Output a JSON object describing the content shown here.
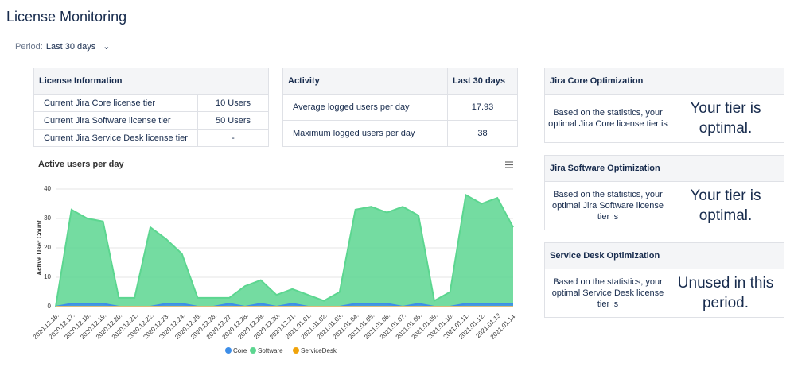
{
  "header": {
    "title": "License Monitoring"
  },
  "period": {
    "label": "Period:",
    "value": "Last 30 days"
  },
  "license_table": {
    "header": "License Information",
    "rows": [
      [
        "Current Jira Core license tier",
        "10 Users"
      ],
      [
        "Current Jira Software license tier",
        "50 Users"
      ],
      [
        "Current Jira Service Desk license tier",
        "-"
      ]
    ]
  },
  "activity_table": {
    "headers": [
      "Activity",
      "Last 30 days"
    ],
    "rows": [
      [
        "Average logged users per day",
        "17.93"
      ],
      [
        "Maximum logged users per day",
        "38"
      ]
    ]
  },
  "cards": [
    {
      "title": "Jira Core Optimization",
      "text": "Based on the statistics, your optimal Jira Core license tier is",
      "result": "Your tier is optimal."
    },
    {
      "title": "Jira Software Optimization",
      "text": "Based on the statistics, your optimal Jira Software license tier is",
      "result": "Your tier is optimal."
    },
    {
      "title": "Service Desk Optimization",
      "text": "Based on the statistics, your optimal Service Desk license tier is",
      "result": "Unused in this period."
    }
  ],
  "chart_data": {
    "type": "area",
    "title": "Active users per day",
    "y_label": "Active User Count",
    "categories": [
      "2020.12.16.",
      "2020.12.17.",
      "2020.12.18.",
      "2020.12.19.",
      "2020.12.20.",
      "2020.12.21.",
      "2020.12.22.",
      "2020.12.23.",
      "2020.12.24.",
      "2020.12.25.",
      "2020.12.26.",
      "2020.12.27.",
      "2020.12.28.",
      "2020.12.29.",
      "2020.12.30.",
      "2020.12.31.",
      "2021.01.01.",
      "2021.01.02.",
      "2021.01.03.",
      "2021.01.04.",
      "2021.01.05.",
      "2021.01.06.",
      "2021.01.07.",
      "2021.01.08.",
      "2021.01.09.",
      "2021.01.10.",
      "2021.01.11.",
      "2021.01.12.",
      "2021.01.13",
      "2021.01.14."
    ],
    "series": [
      {
        "name": "Core",
        "color": "#3d8ee8",
        "values": [
          0,
          1,
          1,
          1,
          0,
          0,
          0,
          1,
          1,
          0,
          0,
          1,
          0,
          1,
          0,
          1,
          0,
          0,
          0,
          1,
          1,
          1,
          0,
          1,
          0,
          0,
          1,
          1,
          1,
          1
        ]
      },
      {
        "name": "Software",
        "color": "#5cd690",
        "values": [
          0,
          33,
          30,
          29,
          3,
          3,
          27,
          23,
          18,
          3,
          3,
          3,
          7,
          9,
          4,
          6,
          4,
          2,
          5,
          33,
          34,
          32,
          34,
          31,
          2,
          5,
          38,
          35,
          37,
          27
        ]
      },
      {
        "name": "ServiceDesk",
        "color": "#f0a30a",
        "values": [
          0,
          0,
          0,
          0,
          0,
          0,
          0,
          0,
          0,
          0,
          0,
          0,
          0,
          0,
          0,
          0,
          0,
          0,
          0,
          0,
          0,
          0,
          0,
          0,
          0,
          0,
          0,
          0,
          0,
          0
        ]
      }
    ],
    "ylim": [
      0,
      40
    ],
    "yticks": [
      0,
      10,
      20,
      30,
      40
    ],
    "grid": true,
    "legend": "bottom"
  }
}
